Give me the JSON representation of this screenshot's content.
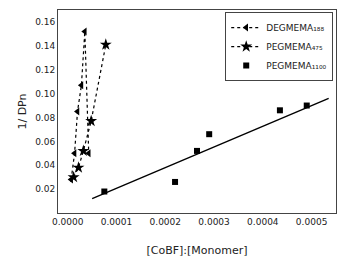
{
  "chart_data": {
    "type": "scatter",
    "title": "",
    "xlabel": "[CoBF]:[Monomer]",
    "ylabel": "1/ DPn",
    "xlim": [
      -2e-05,
      0.00055
    ],
    "ylim": [
      0.0,
      0.17
    ],
    "xticks": [
      {
        "value": 0.0,
        "label": "0.0000"
      },
      {
        "value": 0.0001,
        "label": "0.0001"
      },
      {
        "value": 0.0002,
        "label": "0.0002"
      },
      {
        "value": 0.0003,
        "label": "0.0003"
      },
      {
        "value": 0.0004,
        "label": "0.0004"
      },
      {
        "value": 0.0005,
        "label": "0.0005"
      }
    ],
    "yticks": [
      0.02,
      0.04,
      0.06,
      0.08,
      {
        "value": 0.1,
        "label": "0.10"
      },
      0.12,
      0.14,
      0.16
    ],
    "grid": false,
    "legend": "upper right",
    "series": [
      {
        "x": [
          5e-05,
          0.000535
        ],
        "values": [
          0.012,
          0.096
        ],
        "color": "black",
        "line_style": "solid"
      },
      {
        "name": "DEGMEMA₁₈₈",
        "x": [
          7e-06,
          1.4e-05,
          2e-05,
          2.8e-05,
          3.5e-05,
          4.3e-05
        ],
        "values": [
          0.028,
          0.05,
          0.085,
          0.107,
          0.152,
          0.05
        ],
        "color": "black",
        "marker": "triangle-left",
        "line_style": "dotted"
      },
      {
        "name": "PEGMEMA₄₇₅",
        "x": [
          1.2e-05,
          2.2e-05,
          3.2e-05,
          4.8e-05,
          7.8e-05
        ],
        "values": [
          0.03,
          0.038,
          0.052,
          0.077,
          0.141
        ],
        "color": "black",
        "marker": "star",
        "line_style": "dotted"
      },
      {
        "name": "PEGMEMA₁₁₀₀",
        "x": [
          7.5e-05,
          0.00022,
          0.000265,
          0.00029,
          0.000435,
          0.00049
        ],
        "values": [
          0.018,
          0.026,
          0.052,
          0.066,
          0.086,
          0.09
        ],
        "color": "black",
        "marker": "square"
      }
    ]
  }
}
